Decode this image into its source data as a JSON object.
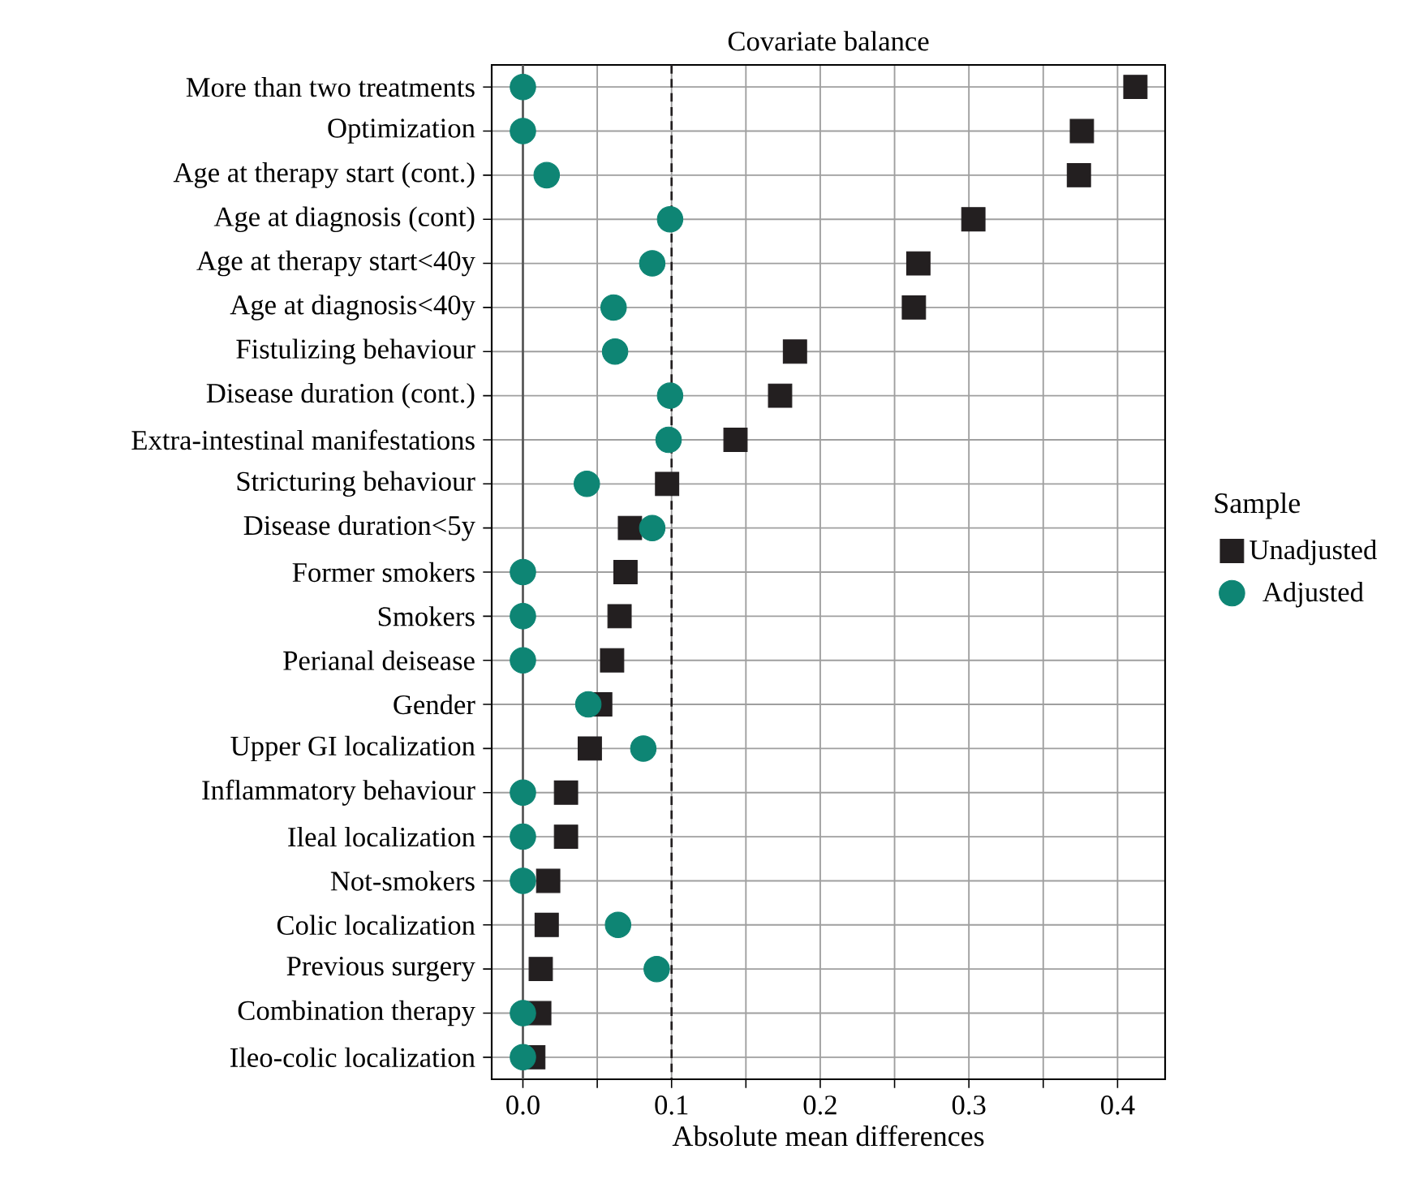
{
  "chart_data": {
    "type": "scatter",
    "title": "Covariate balance",
    "xlabel": "Absolute mean differences",
    "legend_title": "Sample",
    "categories": [
      "More than two treatments",
      "Optimization",
      "Age at therapy start (cont.)",
      "Age at diagnosis (cont)",
      "Age at therapy start<40y",
      "Age at diagnosis<40y",
      "Fistulizing behaviour",
      "Disease duration (cont.)",
      "Extra-intestinal manifestations",
      "Stricturing behaviour",
      "Disease duration<5y",
      "Former smokers",
      "Smokers",
      "Perianal deisease",
      "Gender",
      "Upper GI localization",
      "Inflammatory behaviour",
      "Ileal localization",
      "Not-smokers",
      "Colic localization",
      "Previous surgery",
      "Combination therapy",
      "Ileo-colic localization"
    ],
    "series": [
      {
        "name": "Unadjusted",
        "color": "#231f20",
        "marker": "square",
        "values": [
          0.412,
          0.376,
          0.374,
          0.303,
          0.266,
          0.263,
          0.183,
          0.173,
          0.143,
          0.097,
          0.072,
          0.069,
          0.065,
          0.06,
          0.052,
          0.045,
          0.029,
          0.029,
          0.017,
          0.016,
          0.012,
          0.011,
          0.007
        ]
      },
      {
        "name": "Adjusted",
        "color": "#0e8574",
        "marker": "circle",
        "values": [
          0,
          0,
          0.016,
          0.099,
          0.087,
          0.061,
          0.062,
          0.099,
          0.098,
          0.043,
          0.087,
          0,
          0,
          0,
          0.044,
          0.081,
          0,
          0,
          0,
          0.064,
          0.09,
          0,
          0
        ]
      }
    ],
    "xlim": [
      -0.021,
      0.432
    ],
    "orientation": "horizontal",
    "xticks": [
      {
        "value": 0,
        "label": "0.0"
      },
      {
        "value": 0.05,
        "label": null
      },
      {
        "value": 0.1,
        "label": "0.1"
      },
      {
        "value": 0.15,
        "label": null
      },
      {
        "value": 0.2,
        "label": "0.2"
      },
      {
        "value": 0.25,
        "label": null
      },
      {
        "value": 0.3,
        "label": "0.3"
      },
      {
        "value": 0.35,
        "label": null
      },
      {
        "value": 0.4,
        "label": "0.4"
      }
    ],
    "ref_lines": [
      {
        "axis": "x",
        "value": 0,
        "color": "#555555",
        "line_style": "solid"
      },
      {
        "axis": "x",
        "value": 0.1,
        "color": "#231f20",
        "line_style": "dashed"
      }
    ],
    "grid": true,
    "legend": "right"
  }
}
